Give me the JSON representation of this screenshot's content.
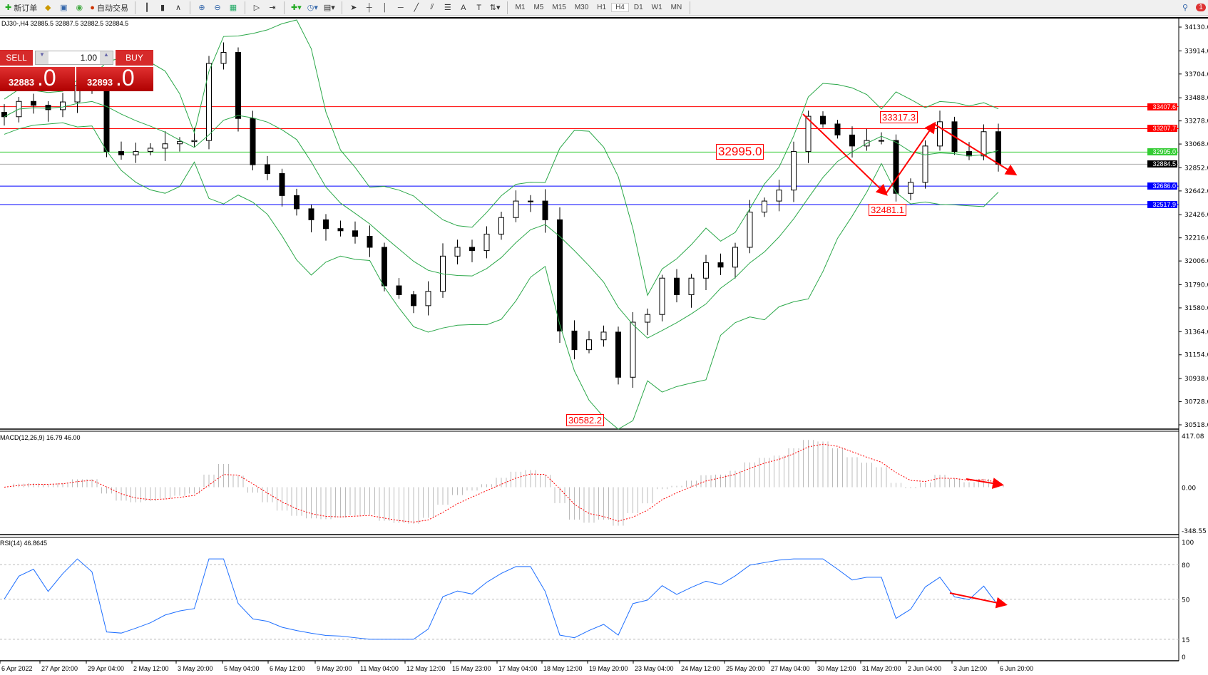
{
  "toolbar": {
    "new_order": "新订单",
    "auto_trading": "自动交易",
    "timeframes": [
      "M1",
      "M5",
      "M15",
      "M30",
      "H1",
      "H4",
      "D1",
      "W1",
      "MN"
    ],
    "active_timeframe": "H4",
    "notification_count": "1"
  },
  "symbol_header": "DJ30-,H4  32885.5 32887.5 32882.5 32884.5",
  "trade_panel": {
    "sell_label": "SELL",
    "buy_label": "BUY",
    "volume": "1.00",
    "sell_price_main": "32883",
    "sell_price_big": ".0",
    "buy_price_main": "32893",
    "buy_price_big": ".0"
  },
  "indicators": {
    "macd_label": "MACD(12,26,9) 16.79 46.00",
    "rsi_label": "RSI(14) 46.8645"
  },
  "colors": {
    "bands": "#2ca84a",
    "macd_signal": "#ff0000",
    "rsi": "#1e6fff",
    "annotation": "#ff0000"
  },
  "chart_data": {
    "type": "candlestick",
    "symbol": "DJ30-",
    "timeframe": "H4",
    "ylim": [
      30518,
      34130
    ],
    "y_ticks": [
      "34130.0",
      "33914.0",
      "33704.0",
      "33488.0",
      "33278.0",
      "33068.0",
      "32852.0",
      "32642.0",
      "32426.0",
      "32216.0",
      "32006.0",
      "31790.0",
      "31580.0",
      "31364.0",
      "31154.0",
      "30938.0",
      "30728.0",
      "30518.0"
    ],
    "x_ticks": [
      "6 Apr 2022",
      "27 Apr 20:00",
      "29 Apr 04:00",
      "2 May 12:00",
      "3 May 20:00",
      "5 May 04:00",
      "6 May 12:00",
      "9 May 20:00",
      "11 May 04:00",
      "12 May 12:00",
      "15 May 23:00",
      "17 May 04:00",
      "18 May 12:00",
      "19 May 20:00",
      "23 May 04:00",
      "24 May 12:00",
      "25 May 20:00",
      "27 May 04:00",
      "30 May 12:00",
      "31 May 20:00",
      "2 Jun 04:00",
      "3 Jun 12:00",
      "6 Jun 20:00"
    ],
    "closes": [
      33316,
      33455,
      33420,
      33380,
      33450,
      33600,
      33560,
      33000,
      32970,
      33000,
      33030,
      33070,
      33090,
      33100,
      33800,
      33900,
      33300,
      32880,
      32800,
      32600,
      32480,
      32380,
      32300,
      32280,
      32230,
      32130,
      31780,
      31700,
      31600,
      31730,
      32050,
      32130,
      32100,
      32250,
      32400,
      32550,
      32550,
      32380,
      31370,
      31200,
      31290,
      31360,
      30950,
      31450,
      31520,
      31850,
      31700,
      31850,
      31990,
      31950,
      32130,
      32450,
      32550,
      32650,
      33000,
      33320,
      33250,
      33150,
      33050,
      33100,
      33100,
      32620,
      32720,
      33050,
      33270,
      33000,
      32960,
      33180,
      32885
    ],
    "horizontal_lines": [
      {
        "price": "33407.6",
        "color": "#ff0000"
      },
      {
        "price": "33207.7",
        "color": "#ff0000"
      },
      {
        "price": "32995.0",
        "color": "#33cc33"
      },
      {
        "price": "32884.5",
        "color": "#000000"
      },
      {
        "price": "32686.0",
        "color": "#0000ff"
      },
      {
        "price": "32517.9",
        "color": "#0000ff"
      }
    ],
    "annotations": [
      "33317.3",
      "32995.0",
      "32481.1",
      "30582.2"
    ],
    "macd_ticks": [
      "417.08",
      "0.00",
      "-348.55"
    ],
    "rsi_ticks": [
      "100",
      "80",
      "50",
      "15",
      "0"
    ]
  }
}
